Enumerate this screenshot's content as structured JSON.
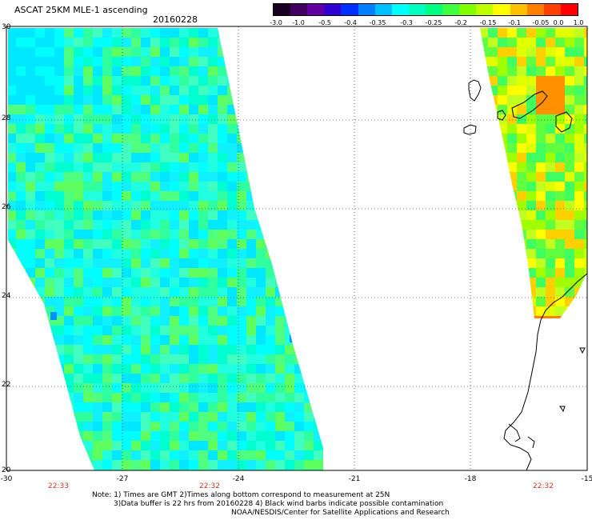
{
  "title": "ASCAT 25KM MLE-1 ascending",
  "date": "20160228",
  "colorbar": {
    "labels": [
      "-3.0",
      "-1.0",
      "-0.5",
      "-0.4",
      "-0.35",
      "-0.3",
      "-0.25",
      "-0.2",
      "-0.15",
      "-0.1",
      "-0.05",
      "0.0",
      "1.0"
    ],
    "colors": [
      "#1a0020",
      "#400060",
      "#6000a0",
      "#3000d0",
      "#0030ff",
      "#0080ff",
      "#00c0ff",
      "#00ffff",
      "#00ffc0",
      "#00ff80",
      "#40ff40",
      "#80ff00",
      "#c0ff00",
      "#ffff00",
      "#ffc000",
      "#ff8000",
      "#ff4000",
      "#ff0000"
    ]
  },
  "map": {
    "lon_ticks": [
      "-30",
      "-27",
      "-24",
      "-21",
      "-18",
      "-15"
    ],
    "lat_ticks": [
      "30",
      "28",
      "26",
      "24",
      "22",
      "20"
    ],
    "times": [
      "22:33",
      "22:32",
      "22:32"
    ]
  },
  "notes": {
    "line1": "Note: 1) Times are GMT 2)Times along bottom correspond to measurement at 25N",
    "line2": "3)Data buffer is 22 hrs from 20160228 4) Black wind barbs indicate possible contamination",
    "line3": "NOAA/NESDIS/Center for Satellite Applications and Research"
  }
}
